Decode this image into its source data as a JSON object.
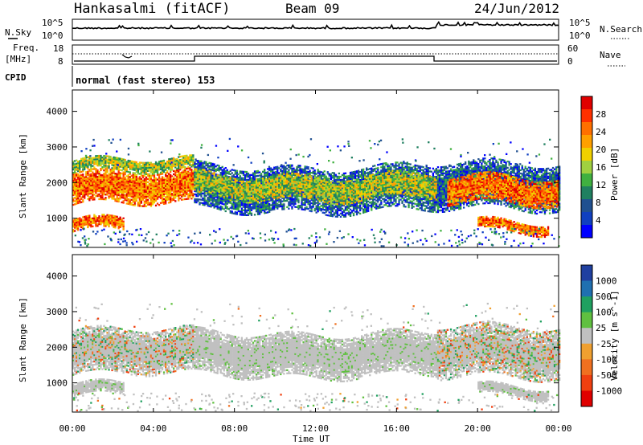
{
  "header": {
    "station": "Hankasalmi (fitACF)",
    "beam": "Beam 09",
    "date": "24/Jun/2012"
  },
  "noise_panel": {
    "left_label": "N.Sky",
    "right_label": "N.Search",
    "left_ticks": [
      "10^5",
      "10^0"
    ],
    "right_ticks": [
      "10^5",
      "10^0"
    ]
  },
  "freq_panel": {
    "left_label_1": "Freq.",
    "left_label_2": "[MHz]",
    "left_ticks": [
      "18",
      "8"
    ],
    "right_label": "Nave",
    "right_ticks": [
      "60",
      "0"
    ]
  },
  "cpid_panel": {
    "label": "CPID",
    "mode_text": "normal (fast stereo) 153"
  },
  "x_axis": {
    "label": "Time UT",
    "ticks": [
      "00:00",
      "04:00",
      "08:00",
      "12:00",
      "16:00",
      "20:00",
      "00:00"
    ]
  },
  "chart_data": [
    {
      "type": "heatmap",
      "title": "",
      "quantity": "Power",
      "xlabel": "Time UT",
      "ylabel": "Slant Range [km]",
      "xlim_hours": [
        0,
        24
      ],
      "ylim_km": [
        180,
        4600
      ],
      "yticks": [
        "4000",
        "3000",
        "2000",
        "1000"
      ],
      "colorbar": {
        "label": "Power [dB]",
        "ticks": [
          "28",
          "24",
          "20",
          "16",
          "12",
          "8",
          "4"
        ],
        "colors": [
          "#e00000",
          "#ff3000",
          "#ff7000",
          "#ffa000",
          "#f0d000",
          "#a0d040",
          "#40b040",
          "#208060",
          "#205090",
          "#1040c0",
          "#0000ff"
        ]
      },
      "bands": [
        {
          "t0": 0.0,
          "t1": 6.0,
          "r0": 1350,
          "r1": 2250,
          "level": "high"
        },
        {
          "t0": 0.0,
          "t1": 6.0,
          "r0": 2250,
          "r1": 2600,
          "level": "mid"
        },
        {
          "t0": 6.0,
          "t1": 18.0,
          "r0": 1200,
          "r1": 2450,
          "level": "low"
        },
        {
          "t0": 6.0,
          "t1": 18.0,
          "r0": 1550,
          "r1": 2200,
          "level": "mid"
        },
        {
          "t0": 18.0,
          "t1": 24.0,
          "r0": 1200,
          "r1": 2500,
          "level": "low"
        },
        {
          "t0": 18.5,
          "t1": 24.0,
          "r0": 1350,
          "r1": 2100,
          "level": "high"
        },
        {
          "t0": 0.0,
          "t1": 2.5,
          "r0": 600,
          "r1": 950,
          "level": "high"
        },
        {
          "t0": 20.0,
          "t1": 23.5,
          "r0": 550,
          "r1": 850,
          "level": "high"
        }
      ]
    },
    {
      "type": "heatmap",
      "title": "",
      "quantity": "Velocity",
      "xlabel": "Time UT",
      "ylabel": "Slant Range [km]",
      "xlim_hours": [
        0,
        24
      ],
      "ylim_km": [
        180,
        4600
      ],
      "yticks": [
        "4000",
        "3000",
        "2000",
        "1000"
      ],
      "colorbar": {
        "label": "Velocity [m s^-1]",
        "ticks": [
          "1000",
          "500",
          "100",
          "25",
          "-25",
          "-100",
          "-500",
          "-1000"
        ],
        "colors": [
          "#2040a0",
          "#2070b0",
          "#20a060",
          "#60c040",
          "#c0c0c0",
          "#f0a030",
          "#f07020",
          "#f04010",
          "#e00000"
        ]
      },
      "bands": [
        {
          "t0": 0.0,
          "t1": 6.0,
          "r0": 1200,
          "r1": 2450,
          "level": "mixed"
        },
        {
          "t0": 6.0,
          "t1": 18.0,
          "r0": 1200,
          "r1": 2400,
          "level": "grey"
        },
        {
          "t0": 18.0,
          "t1": 24.0,
          "r0": 1100,
          "r1": 2500,
          "level": "mixed"
        },
        {
          "t0": 0.0,
          "t1": 2.5,
          "r0": 600,
          "r1": 950,
          "level": "grey"
        },
        {
          "t0": 20.0,
          "t1": 23.5,
          "r0": 550,
          "r1": 850,
          "level": "grey"
        }
      ]
    }
  ]
}
